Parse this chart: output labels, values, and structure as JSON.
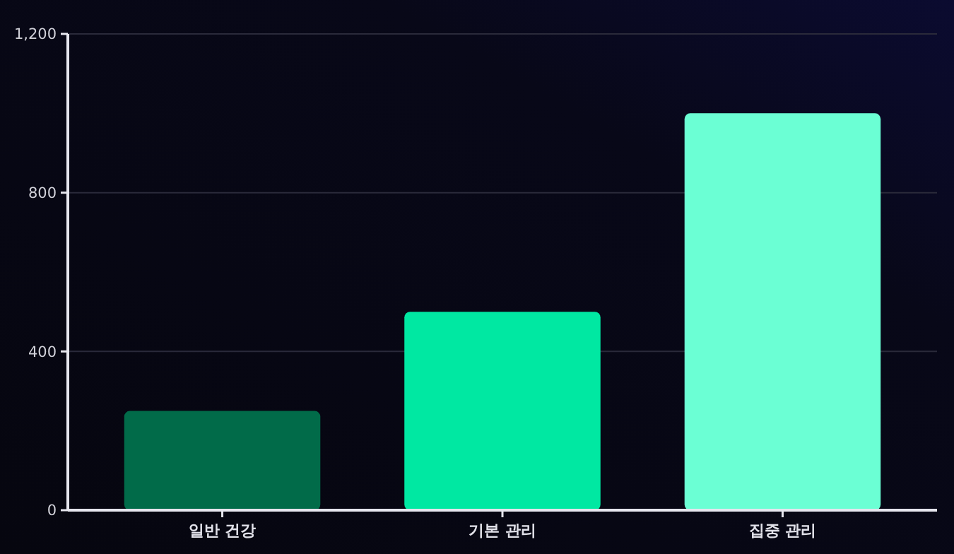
{
  "chart_data": {
    "type": "bar",
    "categories": [
      "일반 건강",
      "기본 관리",
      "집중 관리"
    ],
    "values": [
      250,
      500,
      1000
    ],
    "colors": [
      "#016b49",
      "#00e8a2",
      "#6bffd4"
    ],
    "ylim": [
      0,
      1200
    ],
    "yticks": [
      0,
      400,
      800,
      {
        "value": 1200,
        "label": "1,200"
      }
    ],
    "grid": "y"
  }
}
